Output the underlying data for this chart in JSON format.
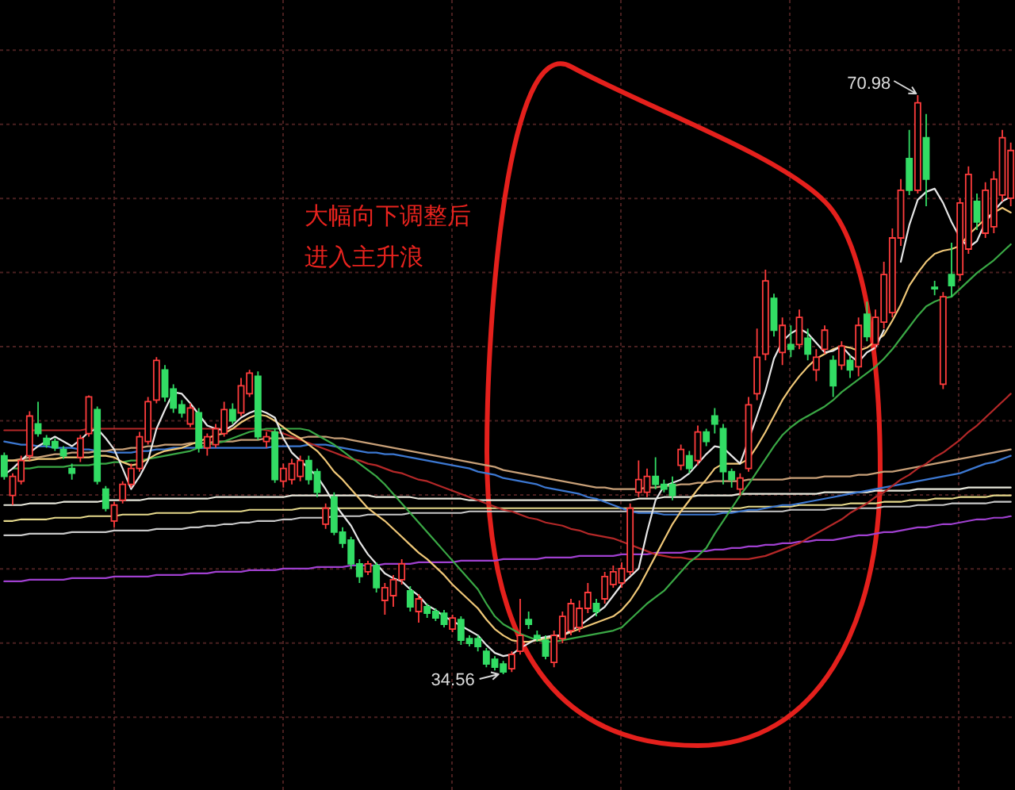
{
  "chart_data": {
    "type": "candlestick",
    "grid": true,
    "categories": [
      null,
      null,
      null,
      null,
      null,
      null,
      null,
      null,
      null,
      null,
      null,
      null,
      null,
      null,
      null,
      null,
      null,
      null,
      null,
      null,
      null,
      null,
      null,
      null,
      null,
      null,
      null,
      null,
      null,
      null,
      null,
      null,
      null,
      null,
      null,
      null,
      null,
      null,
      null,
      null,
      null,
      null,
      null,
      null,
      null,
      null,
      null,
      null,
      null,
      null,
      null,
      null,
      null,
      null,
      null,
      null,
      null,
      null,
      null,
      null,
      null,
      null,
      null,
      null,
      null,
      null,
      null,
      null,
      null,
      null,
      null,
      null,
      null,
      null,
      null,
      null,
      null,
      null,
      null,
      null,
      null,
      null,
      null,
      null,
      null,
      null,
      null,
      null,
      null,
      null,
      null,
      null,
      null,
      null,
      null,
      null,
      null,
      null,
      null,
      null,
      null,
      null,
      null,
      null,
      null,
      null,
      null,
      null,
      null,
      null,
      null,
      null,
      null,
      null,
      null,
      null,
      null,
      null,
      null,
      null
    ],
    "ohlc": [
      [
        48.3,
        48.5,
        46.8,
        47.0
      ],
      [
        45.8,
        47.2,
        45.2,
        47.0
      ],
      [
        46.7,
        48.3,
        46.5,
        48.0
      ],
      [
        48.3,
        51.1,
        48.0,
        50.8
      ],
      [
        50.3,
        51.7,
        49.5,
        49.7
      ],
      [
        49.4,
        49.6,
        48.8,
        49.0
      ],
      [
        49.2,
        49.4,
        48.6,
        48.8
      ],
      [
        48.7,
        48.9,
        48.1,
        48.3
      ],
      [
        47.5,
        47.8,
        46.8,
        47.2
      ],
      [
        48.2,
        49.6,
        47.9,
        49.4
      ],
      [
        49.7,
        52.1,
        49.5,
        52.0
      ],
      [
        51.2,
        51.4,
        46.5,
        46.7
      ],
      [
        46.2,
        46.4,
        44.8,
        45.0
      ],
      [
        44.2,
        45.4,
        43.8,
        45.2
      ],
      [
        45.5,
        46.7,
        45.3,
        46.5
      ],
      [
        46.5,
        47.8,
        46.3,
        47.5
      ],
      [
        47.5,
        49.8,
        47.3,
        49.5
      ],
      [
        49.2,
        52.0,
        49.0,
        51.7
      ],
      [
        51.8,
        54.5,
        51.6,
        54.3
      ],
      [
        53.7,
        54.0,
        51.7,
        52.0
      ],
      [
        52.5,
        52.8,
        51.0,
        51.3
      ],
      [
        51.5,
        51.8,
        50.7,
        51.0
      ],
      [
        50.3,
        51.6,
        50.1,
        51.3
      ],
      [
        51.0,
        51.3,
        48.5,
        48.8
      ],
      [
        48.8,
        49.7,
        48.3,
        49.5
      ],
      [
        49.0,
        50.3,
        48.8,
        50.0
      ],
      [
        49.7,
        51.7,
        49.5,
        51.2
      ],
      [
        51.2,
        51.6,
        50.3,
        50.5
      ],
      [
        51.0,
        53.2,
        50.8,
        52.7
      ],
      [
        52.2,
        53.7,
        52.0,
        53.5
      ],
      [
        53.3,
        53.6,
        49.3,
        49.5
      ],
      [
        49.2,
        49.8,
        48.8,
        49.5
      ],
      [
        49.8,
        50.0,
        46.6,
        46.8
      ],
      [
        46.7,
        47.8,
        46.3,
        47.5
      ],
      [
        46.8,
        48.1,
        46.5,
        47.8
      ],
      [
        47.0,
        48.3,
        46.7,
        48.0
      ],
      [
        48.0,
        48.3,
        46.5,
        46.8
      ],
      [
        47.3,
        47.5,
        45.7,
        46.0
      ],
      [
        44.0,
        45.3,
        43.7,
        45.0
      ],
      [
        45.7,
        46.0,
        43.3,
        43.5
      ],
      [
        43.5,
        43.8,
        42.5,
        42.8
      ],
      [
        43.0,
        43.2,
        41.2,
        41.5
      ],
      [
        41.5,
        41.8,
        40.3,
        40.7
      ],
      [
        41.0,
        41.7,
        40.8,
        41.5
      ],
      [
        41.4,
        41.6,
        39.7,
        40.0
      ],
      [
        39.2,
        40.3,
        38.3,
        40.0
      ],
      [
        39.5,
        40.8,
        38.8,
        40.5
      ],
      [
        40.5,
        41.8,
        40.2,
        41.5
      ],
      [
        39.8,
        40.1,
        38.5,
        38.8
      ],
      [
        38.5,
        39.6,
        37.8,
        39.3
      ],
      [
        38.8,
        39.0,
        38.1,
        38.4
      ],
      [
        38.5,
        38.7,
        37.9,
        38.1
      ],
      [
        38.4,
        38.6,
        37.5,
        37.7
      ],
      [
        37.4,
        38.3,
        37.2,
        38.1
      ],
      [
        38.0,
        38.2,
        36.4,
        36.7
      ],
      [
        36.8,
        37.0,
        36.3,
        36.5
      ],
      [
        36.8,
        37.0,
        36.0,
        36.3
      ],
      [
        36.0,
        36.2,
        35.0,
        35.2
      ],
      [
        35.5,
        35.7,
        34.8,
        35.0
      ],
      [
        35.2,
        35.4,
        34.56,
        34.7
      ],
      [
        34.9,
        36.0,
        34.7,
        35.8
      ],
      [
        36.0,
        39.3,
        35.8,
        37.0
      ],
      [
        38.0,
        38.5,
        37.4,
        37.7
      ],
      [
        37.0,
        37.3,
        36.6,
        36.8
      ],
      [
        36.7,
        37.0,
        35.5,
        35.7
      ],
      [
        35.3,
        37.3,
        35.0,
        37.0
      ],
      [
        36.8,
        38.5,
        36.5,
        38.2
      ],
      [
        37.3,
        39.3,
        37.0,
        39.0
      ],
      [
        37.5,
        39.2,
        37.2,
        38.7
      ],
      [
        38.7,
        40.3,
        38.4,
        39.7
      ],
      [
        39.0,
        39.3,
        38.2,
        38.5
      ],
      [
        39.3,
        41.0,
        39.0,
        40.7
      ],
      [
        40.2,
        41.4,
        40.0,
        41.0
      ],
      [
        40.3,
        41.6,
        40.0,
        41.2
      ],
      [
        41.0,
        45.3,
        40.8,
        45.0
      ],
      [
        46.0,
        48.0,
        45.7,
        46.8
      ],
      [
        46.0,
        47.5,
        45.7,
        47.0
      ],
      [
        47.0,
        48.2,
        46.2,
        46.5
      ],
      [
        46.5,
        46.8,
        46.0,
        46.2
      ],
      [
        46.5,
        47.0,
        45.5,
        45.8
      ],
      [
        47.7,
        49.0,
        47.4,
        48.7
      ],
      [
        48.3,
        48.6,
        47.2,
        47.5
      ],
      [
        48.0,
        50.2,
        47.7,
        49.8
      ],
      [
        49.8,
        50.0,
        48.9,
        49.2
      ],
      [
        50.8,
        51.3,
        49.7,
        50.3
      ],
      [
        50.0,
        50.3,
        46.5,
        47.3
      ],
      [
        47.3,
        47.5,
        46.3,
        46.8
      ],
      [
        46.2,
        47.2,
        45.8,
        46.9
      ],
      [
        47.5,
        52.0,
        47.3,
        51.5
      ],
      [
        52.2,
        56.3,
        51.8,
        54.5
      ],
      [
        54.7,
        60.0,
        54.3,
        59.3
      ],
      [
        58.2,
        58.5,
        55.8,
        56.2
      ],
      [
        54.8,
        57.0,
        54.0,
        56.5
      ],
      [
        55.3,
        56.5,
        54.5,
        55.0
      ],
      [
        55.3,
        57.5,
        55.0,
        57.0
      ],
      [
        55.7,
        56.3,
        54.3,
        54.7
      ],
      [
        53.7,
        55.0,
        53.0,
        54.5
      ],
      [
        55.0,
        56.5,
        54.7,
        56.2
      ],
      [
        54.3,
        54.6,
        52.0,
        52.7
      ],
      [
        54.0,
        55.5,
        53.7,
        55.2
      ],
      [
        54.3,
        54.6,
        53.2,
        53.7
      ],
      [
        53.9,
        57.0,
        53.3,
        56.5
      ],
      [
        57.2,
        58.0,
        55.5,
        55.8
      ],
      [
        55.3,
        57.5,
        55.0,
        57.0
      ],
      [
        56.7,
        60.5,
        56.3,
        59.7
      ],
      [
        57.3,
        62.6,
        57.0,
        62.0
      ],
      [
        62.0,
        65.7,
        61.5,
        65.0
      ],
      [
        67.0,
        68.8,
        64.7,
        65.0
      ],
      [
        65.0,
        70.98,
        64.8,
        70.5
      ],
      [
        68.3,
        69.8,
        64.0,
        65.7
      ],
      [
        58.9,
        59.3,
        58.4,
        58.8
      ],
      [
        52.8,
        58.6,
        52.5,
        58.3
      ],
      [
        59.7,
        61.7,
        58.3,
        59.0
      ],
      [
        59.7,
        64.5,
        59.3,
        64.2
      ],
      [
        61.3,
        66.5,
        61.0,
        66.0
      ],
      [
        64.3,
        64.8,
        62.5,
        63.0
      ],
      [
        62.3,
        65.5,
        62.0,
        65.0
      ],
      [
        62.7,
        66.2,
        62.3,
        65.7
      ],
      [
        64.7,
        68.8,
        64.3,
        68.3
      ],
      [
        64.5,
        68.0,
        64.0,
        67.5
      ]
    ],
    "colors": [
      "#32dc64",
      "#ff3c3c",
      "#ff3c3c",
      "#ff3c3c",
      "#32dc64",
      "#32dc64",
      "#32dc64",
      "#32dc64",
      "#32dc64",
      "#ff3c3c",
      "#ff3c3c",
      "#32dc64",
      "#32dc64",
      "#ff3c3c",
      "#ff3c3c",
      "#ff3c3c",
      "#ff3c3c",
      "#ff3c3c",
      "#ff3c3c",
      "#32dc64",
      "#32dc64",
      "#32dc64",
      "#ff3c3c",
      "#32dc64",
      "#ff3c3c",
      "#ff3c3c",
      "#ff3c3c",
      "#32dc64",
      "#ff3c3c",
      "#ff3c3c",
      "#32dc64",
      "#ff3c3c",
      "#32dc64",
      "#ff3c3c",
      "#ff3c3c",
      "#ff3c3c",
      "#32dc64",
      "#32dc64",
      "#ff3c3c",
      "#32dc64",
      "#32dc64",
      "#32dc64",
      "#32dc64",
      "#ff3c3c",
      "#32dc64",
      "#ff3c3c",
      "#ff3c3c",
      "#ff3c3c",
      "#32dc64",
      "#ff3c3c",
      "#32dc64",
      "#32dc64",
      "#32dc64",
      "#ff3c3c",
      "#32dc64",
      "#32dc64",
      "#32dc64",
      "#32dc64",
      "#32dc64",
      "#32dc64",
      "#ff3c3c",
      "#ff3c3c",
      "#32dc64",
      "#32dc64",
      "#32dc64",
      "#ff3c3c",
      "#ff3c3c",
      "#ff3c3c",
      "#ff3c3c",
      "#ff3c3c",
      "#32dc64",
      "#ff3c3c",
      "#ff3c3c",
      "#ff3c3c",
      "#ff3c3c",
      "#ff3c3c",
      "#ff3c3c",
      "#32dc64",
      "#32dc64",
      "#32dc64",
      "#ff3c3c",
      "#32dc64",
      "#ff3c3c",
      "#32dc64",
      "#32dc64",
      "#32dc64",
      "#32dc64",
      "#ff3c3c",
      "#ff3c3c",
      "#ff3c3c",
      "#ff3c3c",
      "#32dc64",
      "#ff3c3c",
      "#32dc64",
      "#ff3c3c",
      "#32dc64",
      "#ff3c3c",
      "#ff3c3c",
      "#32dc64",
      "#ff3c3c",
      "#32dc64",
      "#ff3c3c",
      "#32dc64",
      "#ff3c3c",
      "#ff3c3c",
      "#ff3c3c",
      "#ff3c3c",
      "#32dc64",
      "#ff3c3c",
      "#32dc64",
      "#32dc64",
      "#ff3c3c",
      "#32dc64",
      "#ff3c3c",
      "#ff3c3c",
      "#32dc64",
      "#ff3c3c",
      "#ff3c3c",
      "#ff3c3c",
      "#ff3c3c"
    ],
    "series": [
      {
        "type": "line",
        "color": "#a040d0",
        "values": [
          40.4,
          40.4,
          40.4,
          40.5,
          40.5,
          40.5,
          40.5,
          40.5,
          40.6,
          40.6,
          40.6,
          40.6,
          40.6,
          40.7,
          40.7,
          40.7,
          40.7,
          40.7,
          40.8,
          40.8,
          40.8,
          40.8,
          40.9,
          40.9,
          40.9,
          41.0,
          41.0,
          41.0,
          41.0,
          41.1,
          41.1,
          41.1,
          41.1,
          41.2,
          41.2,
          41.2,
          41.2,
          41.3,
          41.3,
          41.3,
          41.3,
          41.4,
          41.4,
          41.4,
          41.4,
          41.5,
          41.5,
          41.5,
          41.5,
          41.6,
          41.6,
          41.6,
          41.6,
          41.6,
          41.7,
          41.7,
          41.7,
          41.7,
          41.7,
          41.8,
          41.8,
          41.8,
          41.8,
          41.8,
          41.9,
          41.9,
          41.9,
          41.9,
          42.0,
          42.0,
          42.0,
          42.0,
          42.0,
          42.1,
          42.1,
          42.1,
          42.1,
          42.2,
          42.2,
          42.2,
          42.2,
          42.3,
          42.3,
          42.3,
          42.4,
          42.4,
          42.5,
          42.5,
          42.6,
          42.6,
          42.7,
          42.7,
          42.8,
          42.8,
          42.9,
          42.9,
          43.0,
          43.0,
          43.0,
          43.1,
          43.2,
          43.3,
          43.3,
          43.4,
          43.5,
          43.5,
          43.6,
          43.7,
          43.8,
          43.8,
          43.9,
          44.0,
          44.0,
          44.1,
          44.2,
          44.3,
          44.3,
          44.4,
          44.4,
          44.5
        ]
      },
      {
        "type": "line",
        "color": "#c8c8c8",
        "values": [
          43.3,
          43.3,
          43.3,
          43.4,
          43.4,
          43.4,
          43.4,
          43.4,
          43.5,
          43.5,
          43.5,
          43.5,
          43.5,
          43.6,
          43.6,
          43.6,
          43.6,
          43.6,
          43.7,
          43.7,
          43.7,
          43.7,
          43.8,
          43.8,
          43.9,
          43.9,
          44.0,
          44.0,
          44.1,
          44.1,
          44.2,
          44.2,
          44.2,
          44.3,
          44.3,
          44.4,
          44.4,
          44.4,
          44.4,
          44.5,
          44.5,
          44.5,
          44.5,
          44.6,
          44.6,
          44.6,
          44.6,
          44.6,
          44.7,
          44.7,
          44.7,
          44.7,
          44.7,
          44.7,
          44.7,
          44.8,
          44.8,
          44.8,
          44.8,
          44.8,
          44.8,
          44.8,
          44.8,
          44.8,
          44.8,
          44.8,
          44.8,
          44.8,
          44.8,
          44.8,
          44.8,
          44.8,
          44.8,
          44.8,
          44.8,
          44.8,
          44.8,
          44.8,
          44.8,
          44.8,
          44.8,
          44.8,
          44.8,
          44.8,
          44.8,
          44.8,
          44.8,
          44.8,
          44.8,
          44.8,
          44.8,
          44.8,
          44.8,
          44.9,
          44.9,
          44.9,
          44.9,
          44.9,
          45.0,
          45.0,
          45.0,
          45.0,
          45.0,
          45.0,
          45.1,
          45.1,
          45.1,
          45.1,
          45.2,
          45.2,
          45.2,
          45.2,
          45.3,
          45.3,
          45.3,
          45.3,
          45.3,
          45.4,
          45.4,
          45.4
        ]
      },
      {
        "type": "line",
        "color": "#e6d98c",
        "values": [
          44.2,
          44.2,
          44.3,
          44.3,
          44.3,
          44.3,
          44.4,
          44.4,
          44.4,
          44.4,
          44.5,
          44.5,
          44.5,
          44.5,
          44.6,
          44.6,
          44.6,
          44.6,
          44.7,
          44.7,
          44.7,
          44.7,
          44.7,
          44.8,
          44.8,
          44.8,
          44.8,
          44.8,
          44.8,
          44.9,
          44.9,
          44.9,
          44.9,
          44.9,
          44.9,
          45.0,
          45.0,
          45.0,
          45.0,
          45.0,
          45.0,
          45.0,
          45.0,
          45.0,
          45.0,
          45.0,
          45.0,
          45.0,
          45.0,
          45.0,
          45.0,
          45.0,
          45.0,
          45.0,
          45.0,
          45.0,
          45.0,
          45.0,
          45.0,
          45.0,
          45.0,
          45.0,
          45.0,
          45.0,
          45.0,
          45.0,
          45.0,
          45.0,
          45.0,
          45.0,
          45.0,
          45.0,
          45.0,
          45.0,
          45.0,
          45.0,
          45.0,
          45.0,
          45.0,
          45.0,
          45.0,
          45.0,
          45.0,
          45.0,
          45.0,
          45.0,
          45.0,
          45.0,
          45.1,
          45.1,
          45.1,
          45.1,
          45.1,
          45.1,
          45.2,
          45.2,
          45.2,
          45.2,
          45.2,
          45.2,
          45.3,
          45.3,
          45.3,
          45.3,
          45.4,
          45.4,
          45.4,
          45.5,
          45.5,
          45.5,
          45.6,
          45.6,
          45.6,
          45.7,
          45.7,
          45.7,
          45.7,
          45.8,
          45.8,
          45.8
        ]
      },
      {
        "type": "line",
        "color": "#e8e8dc",
        "values": [
          45.2,
          45.2,
          45.2,
          45.3,
          45.3,
          45.3,
          45.3,
          45.4,
          45.4,
          45.4,
          45.4,
          45.4,
          45.5,
          45.5,
          45.5,
          45.5,
          45.5,
          45.6,
          45.6,
          45.6,
          45.6,
          45.6,
          45.6,
          45.6,
          45.6,
          45.7,
          45.7,
          45.7,
          45.7,
          45.7,
          45.7,
          45.7,
          45.7,
          45.7,
          45.8,
          45.8,
          45.8,
          45.8,
          45.8,
          45.8,
          45.8,
          45.8,
          45.8,
          45.8,
          45.7,
          45.7,
          45.7,
          45.7,
          45.7,
          45.6,
          45.6,
          45.6,
          45.6,
          45.6,
          45.6,
          45.5,
          45.5,
          45.5,
          45.5,
          45.5,
          45.5,
          45.5,
          45.5,
          45.5,
          45.5,
          45.5,
          45.5,
          45.5,
          45.5,
          45.5,
          45.5,
          45.5,
          45.5,
          45.5,
          45.5,
          45.6,
          45.6,
          45.6,
          45.7,
          45.7,
          45.7,
          45.7,
          45.8,
          45.8,
          45.8,
          45.8,
          45.8,
          45.9,
          45.9,
          45.9,
          45.9,
          45.9,
          45.9,
          45.9,
          45.9,
          45.9,
          45.9,
          46.0,
          46.0,
          46.0,
          46.0,
          46.0,
          46.0,
          46.1,
          46.1,
          46.1,
          46.1,
          46.1,
          46.2,
          46.2,
          46.2,
          46.2,
          46.2,
          46.2,
          46.3,
          46.3,
          46.3,
          46.3,
          46.3,
          46.3
        ]
      },
      {
        "type": "line",
        "color": "#3c78d2",
        "values": [
          49.2,
          49.1,
          49.0,
          49.0,
          48.9,
          48.9,
          48.8,
          48.8,
          48.8,
          48.7,
          48.7,
          48.6,
          48.6,
          48.5,
          48.5,
          48.5,
          48.6,
          48.6,
          48.7,
          48.7,
          48.8,
          48.8,
          48.8,
          48.8,
          48.8,
          48.8,
          48.8,
          48.8,
          48.8,
          48.8,
          48.8,
          48.8,
          48.9,
          48.9,
          48.9,
          48.9,
          49.0,
          49.0,
          49.0,
          48.9,
          48.8,
          48.7,
          48.6,
          48.5,
          48.5,
          48.4,
          48.4,
          48.3,
          48.2,
          48.1,
          48.0,
          47.9,
          47.8,
          47.7,
          47.6,
          47.5,
          47.3,
          47.2,
          47.1,
          46.9,
          46.8,
          46.7,
          46.6,
          46.5,
          46.3,
          46.2,
          46.1,
          46.0,
          45.9,
          45.7,
          45.6,
          45.4,
          45.2,
          45.0,
          44.8,
          44.7,
          44.7,
          44.7,
          44.6,
          44.6,
          44.6,
          44.6,
          44.6,
          44.6,
          44.6,
          44.7,
          44.7,
          44.8,
          44.9,
          44.9,
          45.0,
          45.1,
          45.2,
          45.2,
          45.3,
          45.4,
          45.5,
          45.6,
          45.7,
          45.8,
          45.9,
          46.0,
          46.1,
          46.2,
          46.3,
          46.4,
          46.5,
          46.6,
          46.7,
          46.8,
          46.9,
          47.0,
          47.1,
          47.2,
          47.4,
          47.6,
          47.8,
          47.9,
          48.1,
          48.3
        ]
      },
      {
        "type": "line",
        "color": "#c8a078",
        "values": [
          48.0,
          48.0,
          48.1,
          48.2,
          48.2,
          48.3,
          48.4,
          48.4,
          48.5,
          48.5,
          48.5,
          48.6,
          48.6,
          48.7,
          48.7,
          48.8,
          48.8,
          48.9,
          48.9,
          49.0,
          49.0,
          49.0,
          49.1,
          49.1,
          49.1,
          49.2,
          49.2,
          49.2,
          49.3,
          49.3,
          49.3,
          49.4,
          49.4,
          49.4,
          49.4,
          49.4,
          49.5,
          49.5,
          49.5,
          49.4,
          49.4,
          49.3,
          49.2,
          49.1,
          49.0,
          48.9,
          48.8,
          48.7,
          48.6,
          48.5,
          48.4,
          48.3,
          48.2,
          48.1,
          48.0,
          47.9,
          47.8,
          47.7,
          47.6,
          47.4,
          47.3,
          47.2,
          47.1,
          47.0,
          46.9,
          46.8,
          46.7,
          46.6,
          46.5,
          46.4,
          46.3,
          46.3,
          46.2,
          46.2,
          46.2,
          46.2,
          46.3,
          46.3,
          46.4,
          46.4,
          46.5,
          46.5,
          46.6,
          46.6,
          46.7,
          46.7,
          46.7,
          46.7,
          46.8,
          46.8,
          46.8,
          46.8,
          46.8,
          46.9,
          46.9,
          46.9,
          46.9,
          47.0,
          47.0,
          47.0,
          47.0,
          47.1,
          47.1,
          47.2,
          47.3,
          47.3,
          47.4,
          47.5,
          47.6,
          47.7,
          47.8,
          47.9,
          48.0,
          48.1,
          48.2,
          48.3,
          48.4,
          48.5,
          48.6,
          48.7
        ]
      },
      {
        "type": "line",
        "color": "#b42828",
        "values": [
          49.9,
          49.9,
          49.9,
          49.9,
          49.9,
          49.9,
          49.9,
          49.9,
          49.9,
          49.9,
          50.0,
          50.0,
          50.0,
          50.0,
          50.0,
          50.0,
          50.0,
          50.0,
          50.0,
          50.0,
          50.0,
          50.0,
          50.0,
          50.0,
          50.0,
          50.0,
          50.0,
          50.0,
          50.0,
          50.0,
          50.0,
          49.9,
          49.8,
          49.7,
          49.5,
          49.3,
          49.1,
          48.9,
          48.7,
          48.5,
          48.3,
          48.1,
          48.0,
          47.8,
          47.7,
          47.5,
          47.3,
          47.2,
          47.0,
          46.8,
          46.7,
          46.5,
          46.3,
          46.1,
          45.9,
          45.7,
          45.5,
          45.3,
          45.1,
          44.9,
          44.8,
          44.6,
          44.4,
          44.3,
          44.1,
          44.0,
          43.9,
          43.7,
          43.6,
          43.4,
          43.3,
          43.2,
          43.1,
          42.9,
          42.7,
          42.5,
          42.3,
          42.1,
          42.0,
          41.9,
          41.9,
          41.8,
          41.8,
          41.8,
          41.8,
          41.8,
          41.8,
          41.8,
          41.8,
          41.9,
          42.0,
          42.2,
          42.4,
          42.6,
          42.8,
          43.1,
          43.4,
          43.7,
          44.0,
          44.3,
          44.7,
          45.0,
          45.3,
          45.7,
          46.0,
          46.4,
          46.8,
          47.1,
          47.5,
          47.8,
          48.2,
          48.5,
          48.9,
          49.3,
          49.8,
          50.2,
          50.7,
          51.2,
          51.7,
          52.2
        ]
      },
      {
        "type": "line",
        "color": "#3aa845",
        "values": [
          null,
          47.5,
          47.5,
          47.5,
          47.6,
          47.6,
          47.6,
          47.6,
          47.7,
          47.7,
          47.7,
          47.8,
          47.8,
          47.9,
          47.9,
          48.0,
          48.0,
          48.1,
          48.2,
          48.3,
          48.4,
          48.5,
          48.6,
          48.8,
          49.0,
          49.1,
          49.2,
          49.4,
          49.6,
          49.8,
          49.9,
          50.0,
          50.0,
          50.0,
          50.0,
          50.0,
          49.9,
          49.6,
          49.3,
          49.0,
          48.6,
          48.2,
          47.8,
          47.4,
          47.0,
          46.5,
          45.9,
          45.3,
          44.7,
          44.1,
          43.5,
          42.9,
          42.3,
          41.7,
          41.1,
          40.5,
          39.9,
          39.0,
          38.2,
          37.7,
          37.4,
          37.1,
          36.9,
          36.7,
          36.6,
          36.6,
          36.7,
          36.8,
          36.9,
          37.0,
          37.1,
          37.2,
          37.3,
          37.5,
          38.0,
          38.5,
          39.0,
          39.4,
          39.8,
          40.4,
          41.0,
          41.6,
          42.0,
          42.5,
          43.4,
          44.2,
          45.0,
          45.8,
          46.5,
          47.3,
          48.1,
          48.9,
          49.6,
          50.1,
          50.5,
          50.8,
          51.1,
          51.4,
          51.8,
          52.3,
          52.7,
          53.1,
          53.5,
          53.9,
          54.4,
          55.0,
          55.7,
          56.4,
          57.1,
          57.7,
          58.0,
          58.2,
          58.3,
          58.8,
          59.3,
          59.8,
          60.2,
          60.6,
          61.1,
          61.6
        ]
      },
      {
        "type": "line",
        "color": "#f0c878",
        "values": [
          48.0,
          48.0,
          48.0,
          48.0,
          48.1,
          48.1,
          48.1,
          48.2,
          48.2,
          48.2,
          48.2,
          48.3,
          48.3,
          48.2,
          47.9,
          47.7,
          47.8,
          48.1,
          48.4,
          48.6,
          48.7,
          48.8,
          49.0,
          49.2,
          49.4,
          49.6,
          49.7,
          50.0,
          50.4,
          50.7,
          50.9,
          50.8,
          50.5,
          50.1,
          49.7,
          49.4,
          49.0,
          48.6,
          48.0,
          47.3,
          46.8,
          46.2,
          45.6,
          45.0,
          44.6,
          44.2,
          43.7,
          43.2,
          42.7,
          42.2,
          41.8,
          41.3,
          40.8,
          40.2,
          39.7,
          39.2,
          38.7,
          38.0,
          37.4,
          37.0,
          36.7,
          36.6,
          36.6,
          36.7,
          36.8,
          36.9,
          37.0,
          37.2,
          37.4,
          37.6,
          37.8,
          38.0,
          38.2,
          38.6,
          39.2,
          40.0,
          41.0,
          42.0,
          43.0,
          44.0,
          44.8,
          45.5,
          46.2,
          46.8,
          47.5,
          47.8,
          47.8,
          47.8,
          48.1,
          48.9,
          49.8,
          50.8,
          51.8,
          52.6,
          53.3,
          53.9,
          54.4,
          54.7,
          55.0,
          55.2,
          55.1,
          54.9,
          55.1,
          55.5,
          55.9,
          56.8,
          57.8,
          59.0,
          59.8,
          60.5,
          61.0,
          61.2,
          61.3,
          61.5,
          62.2,
          62.7,
          63.2,
          63.6,
          63.9,
          63.6
        ]
      },
      {
        "type": "line",
        "color": "#e6e6e6",
        "values": [
          47.1,
          47.5,
          48.0,
          48.5,
          48.9,
          49.2,
          49.5,
          49.2,
          48.9,
          49.3,
          49.8,
          50.0,
          49.4,
          48.7,
          47.5,
          46.2,
          47.0,
          48.0,
          50.0,
          51.2,
          52.3,
          52.2,
          51.6,
          50.9,
          50.2,
          50.0,
          49.9,
          50.2,
          50.7,
          51.0,
          51.2,
          51.0,
          50.7,
          49.4,
          48.5,
          48.0,
          47.5,
          47.0,
          46.2,
          45.3,
          44.6,
          43.9,
          42.9,
          42.1,
          41.5,
          40.9,
          40.6,
          40.4,
          39.9,
          39.5,
          38.9,
          38.6,
          38.2,
          37.9,
          37.6,
          37.3,
          37.0,
          36.4,
          35.9,
          35.7,
          35.8,
          36.2,
          36.5,
          36.8,
          36.9,
          37.0,
          37.0,
          37.3,
          37.6,
          38.0,
          38.4,
          38.8,
          39.5,
          40.2,
          40.7,
          41.2,
          43.5,
          45.5,
          46.4,
          46.6,
          46.8,
          47.2,
          47.8,
          48.4,
          48.9,
          48.8,
          48.3,
          47.8,
          49.3,
          50.8,
          52.4,
          54.4,
          55.5,
          56.0,
          56.3,
          56.0,
          55.4,
          54.8,
          54.9,
          55.2,
          54.6,
          54.2,
          54.8,
          55.1,
          56.2,
          null,
          60.5,
          62.8,
          64.4,
          64.9,
          65.1,
          64.2,
          63.0,
          62.0,
          61.4,
          61.8,
          63.0,
          63.7,
          64.3,
          64.6
        ]
      }
    ],
    "annotations": [
      "大幅向下调整后进入主升浪",
      "70.98",
      "34.56"
    ]
  }
}
